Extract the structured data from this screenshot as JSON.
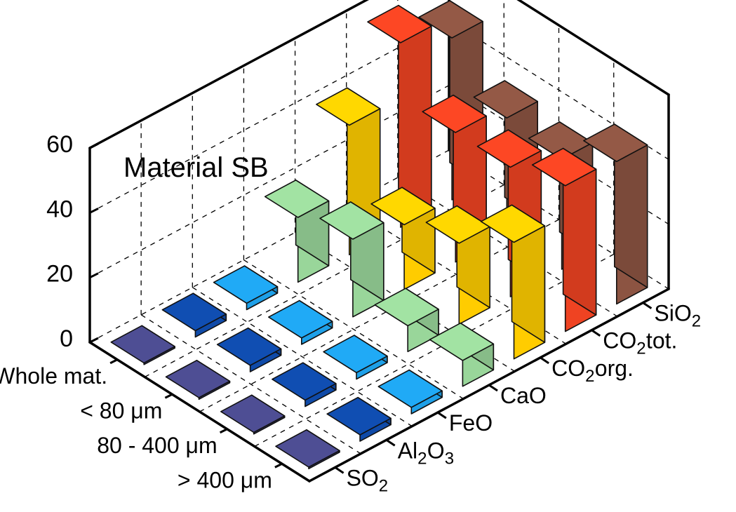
{
  "chart_data": {
    "type": "bar3d",
    "title": "Material SB",
    "zlim": [
      0,
      60
    ],
    "z_ticks": [
      "0",
      "20",
      "40",
      "60"
    ],
    "fractions": [
      "Whole mat.",
      "< 80 μm",
      "80 - 400 μm",
      "> 400 μm"
    ],
    "components": [
      {
        "base": "SO",
        "sub": "2",
        "tail": ""
      },
      {
        "base": "Al",
        "sub": "2",
        "tail": "O",
        "sub2": "3"
      },
      {
        "base": "FeO",
        "sub": "",
        "tail": ""
      },
      {
        "base": "CaO",
        "sub": "",
        "tail": ""
      },
      {
        "base": "CO",
        "sub": "2",
        "tail": " org."
      },
      {
        "base": "CO",
        "sub": "2",
        "tail": " tot."
      },
      {
        "base": "SiO",
        "sub": "2",
        "tail": ""
      }
    ],
    "series": [
      {
        "component": "SO2",
        "color": "#4a4a8c",
        "values": [
          0.5,
          0.5,
          0.5,
          0.5
        ]
      },
      {
        "component": "Al2O3",
        "color": "#0f4aa8",
        "values": [
          2,
          2,
          2,
          2
        ]
      },
      {
        "component": "FeO",
        "color": "#1ea0e8",
        "values": [
          2,
          2,
          2,
          2
        ]
      },
      {
        "component": "CaO",
        "color": "#99d69a",
        "values": [
          20,
          24,
          8,
          8
        ]
      },
      {
        "component": "CO2 org.",
        "color": "#ffcc00",
        "values": [
          40,
          20,
          25,
          36
        ]
      },
      {
        "component": "CO2 tot.",
        "color": "#ef4322",
        "values": [
          57,
          40,
          40,
          45
        ]
      },
      {
        "component": "SiO2",
        "color": "#8c5442",
        "values": [
          50,
          36,
          34,
          44
        ]
      }
    ],
    "grid": true,
    "legend": "none"
  }
}
